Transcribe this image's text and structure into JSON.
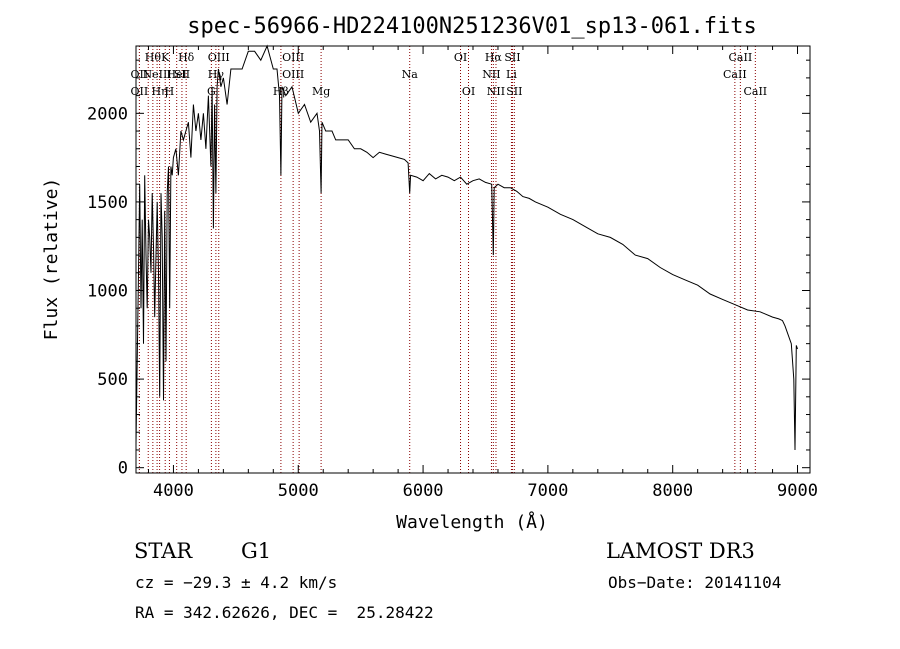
{
  "chart_data": {
    "type": "line",
    "title": "spec-56966-HD224100N251236V01_sp13-061.fits",
    "xlabel": "Wavelength (Å)",
    "ylabel": "Flux (relative)",
    "xlim": [
      3700,
      9100
    ],
    "ylim": [
      -30,
      2380
    ],
    "xticks": [
      4000,
      5000,
      6000,
      7000,
      8000,
      9000
    ],
    "yticks": [
      0,
      500,
      1000,
      1500,
      2000
    ],
    "xtick_labels": [
      "4000",
      "5000",
      "6000",
      "7000",
      "8000",
      "9000"
    ],
    "ytick_labels": [
      "0",
      "500",
      "1000",
      "1500",
      "2000"
    ],
    "series": [
      {
        "name": "spectrum",
        "x": [
          3700,
          3710,
          3720,
          3730,
          3740,
          3750,
          3760,
          3770,
          3780,
          3790,
          3800,
          3810,
          3820,
          3830,
          3840,
          3850,
          3860,
          3870,
          3880,
          3890,
          3900,
          3910,
          3920,
          3930,
          3940,
          3950,
          3960,
          3970,
          3980,
          3990,
          4000,
          4020,
          4040,
          4060,
          4080,
          4100,
          4120,
          4140,
          4160,
          4180,
          4200,
          4220,
          4240,
          4260,
          4280,
          4300,
          4310,
          4320,
          4330,
          4340,
          4350,
          4360,
          4380,
          4400,
          4430,
          4460,
          4500,
          4550,
          4600,
          4650,
          4700,
          4750,
          4800,
          4830,
          4850,
          4861,
          4870,
          4900,
          4950,
          5000,
          5050,
          5100,
          5150,
          5170,
          5183,
          5190,
          5220,
          5270,
          5300,
          5350,
          5400,
          5450,
          5500,
          5550,
          5600,
          5650,
          5700,
          5750,
          5800,
          5850,
          5880,
          5893,
          5900,
          5950,
          6000,
          6050,
          6100,
          6150,
          6200,
          6250,
          6300,
          6350,
          6400,
          6450,
          6500,
          6550,
          6563,
          6570,
          6600,
          6650,
          6700,
          6750,
          6800,
          6850,
          6900,
          7000,
          7100,
          7200,
          7300,
          7400,
          7500,
          7600,
          7700,
          7800,
          7900,
          8000,
          8100,
          8200,
          8300,
          8400,
          8500,
          8600,
          8700,
          8800,
          8850,
          8880,
          8900,
          8950,
          8970,
          8980,
          8990,
          9000
        ],
        "y": [
          130,
          600,
          1100,
          1600,
          900,
          1400,
          700,
          1650,
          1200,
          900,
          1400,
          1300,
          1100,
          1550,
          1250,
          850,
          1200,
          1500,
          1100,
          400,
          1550,
          1300,
          380,
          1450,
          600,
          1550,
          1700,
          900,
          1700,
          1650,
          1750,
          1800,
          1650,
          1900,
          1850,
          1900,
          1950,
          1750,
          2050,
          1900,
          2000,
          1850,
          2000,
          1800,
          2100,
          1700,
          2150,
          1350,
          2050,
          1550,
          2150,
          2250,
          2150,
          2200,
          2050,
          2250,
          2250,
          2250,
          2350,
          2350,
          2300,
          2380,
          2250,
          2250,
          2100,
          1650,
          2150,
          2100,
          2150,
          2000,
          2050,
          1950,
          2000,
          1900,
          1550,
          1950,
          1900,
          1900,
          1850,
          1850,
          1850,
          1800,
          1800,
          1780,
          1750,
          1780,
          1770,
          1760,
          1750,
          1740,
          1720,
          1550,
          1650,
          1640,
          1620,
          1660,
          1630,
          1650,
          1640,
          1620,
          1640,
          1600,
          1620,
          1630,
          1610,
          1600,
          1200,
          1580,
          1600,
          1580,
          1580,
          1560,
          1530,
          1520,
          1500,
          1470,
          1430,
          1400,
          1360,
          1320,
          1300,
          1260,
          1200,
          1180,
          1130,
          1090,
          1060,
          1030,
          980,
          950,
          920,
          890,
          880,
          850,
          840,
          830,
          800,
          700,
          500,
          100,
          690,
          670
        ]
      }
    ],
    "line_groups": [
      {
        "color": "#8b0000",
        "lines": [
          {
            "x": 3727,
            "rows": [
              {
                "row": 2,
                "label": "OII"
              },
              {
                "row": 3,
                "label": "OII"
              }
            ]
          },
          {
            "x": 3798,
            "rows": []
          },
          {
            "x": 3835,
            "rows": [
              {
                "row": 1,
                "label": "Hθ"
              }
            ]
          },
          {
            "x": 3869,
            "rows": [
              {
                "row": 2,
                "label": "NeIII"
              }
            ]
          },
          {
            "x": 3889,
            "rows": [
              {
                "row": 3,
                "label": "Hη"
              }
            ]
          },
          {
            "x": 3934,
            "rows": [
              {
                "row": 1,
                "label": "K"
              }
            ]
          },
          {
            "x": 3968,
            "rows": [
              {
                "row": 3,
                "label": "H"
              }
            ]
          },
          {
            "x": 4026,
            "rows": [
              {
                "row": 2,
                "label": "HeI"
              }
            ]
          },
          {
            "x": 4068,
            "rows": [
              {
                "row": 2,
                "label": "SII"
              }
            ]
          },
          {
            "x": 4102,
            "rows": [
              {
                "row": 1,
                "label": "Hδ"
              }
            ]
          },
          {
            "x": 4304,
            "rows": [
              {
                "row": 3,
                "label": "G"
              }
            ]
          },
          {
            "x": 4340,
            "rows": [
              {
                "row": 2,
                "label": "Hγ"
              }
            ]
          },
          {
            "x": 4363,
            "rows": [
              {
                "row": 1,
                "label": "OIII"
              }
            ]
          },
          {
            "x": 4861,
            "rows": [
              {
                "row": 3,
                "label": "Hβ"
              }
            ]
          },
          {
            "x": 4959,
            "rows": [
              {
                "row": 1,
                "label": "OIII"
              },
              {
                "row": 2,
                "label": "OIII"
              }
            ]
          },
          {
            "x": 5007,
            "rows": []
          },
          {
            "x": 5183,
            "rows": [
              {
                "row": 3,
                "label": "Mg"
              }
            ]
          },
          {
            "x": 5893,
            "rows": [
              {
                "row": 2,
                "label": "Na"
              }
            ]
          },
          {
            "x": 6300,
            "rows": [
              {
                "row": 1,
                "label": "OI"
              }
            ]
          },
          {
            "x": 6364,
            "rows": [
              {
                "row": 3,
                "label": "OI"
              }
            ]
          },
          {
            "x": 6548,
            "rows": [
              {
                "row": 2,
                "label": "NII"
              }
            ]
          },
          {
            "x": 6563,
            "rows": [
              {
                "row": 1,
                "label": "Hα"
              }
            ]
          },
          {
            "x": 6584,
            "rows": [
              {
                "row": 3,
                "label": "NII"
              }
            ]
          },
          {
            "x": 6708,
            "rows": [
              {
                "row": 2,
                "label": "Li"
              }
            ]
          },
          {
            "x": 6716,
            "rows": [
              {
                "row": 1,
                "label": "SII"
              }
            ]
          },
          {
            "x": 6731,
            "rows": [
              {
                "row": 3,
                "label": "SII"
              }
            ]
          },
          {
            "x": 8498,
            "rows": [
              {
                "row": 2,
                "label": "CaII"
              }
            ]
          },
          {
            "x": 8542,
            "rows": [
              {
                "row": 1,
                "label": "CaII"
              }
            ]
          },
          {
            "x": 8662,
            "rows": [
              {
                "row": 3,
                "label": "CaII"
              }
            ]
          }
        ]
      }
    ]
  },
  "info": {
    "object_type": "STAR",
    "subclass": "G1",
    "survey": "LAMOST DR3",
    "cz": "cz = −29.3 ± 4.2 km/s",
    "obs_date": "Obs−Date: 20141104",
    "coords": "RA = 342.62626, DEC =  25.28422"
  },
  "colors": {
    "axes": "#000000",
    "spectrum": "#000000",
    "lines": "#8b0000",
    "background": "#ffffff"
  }
}
